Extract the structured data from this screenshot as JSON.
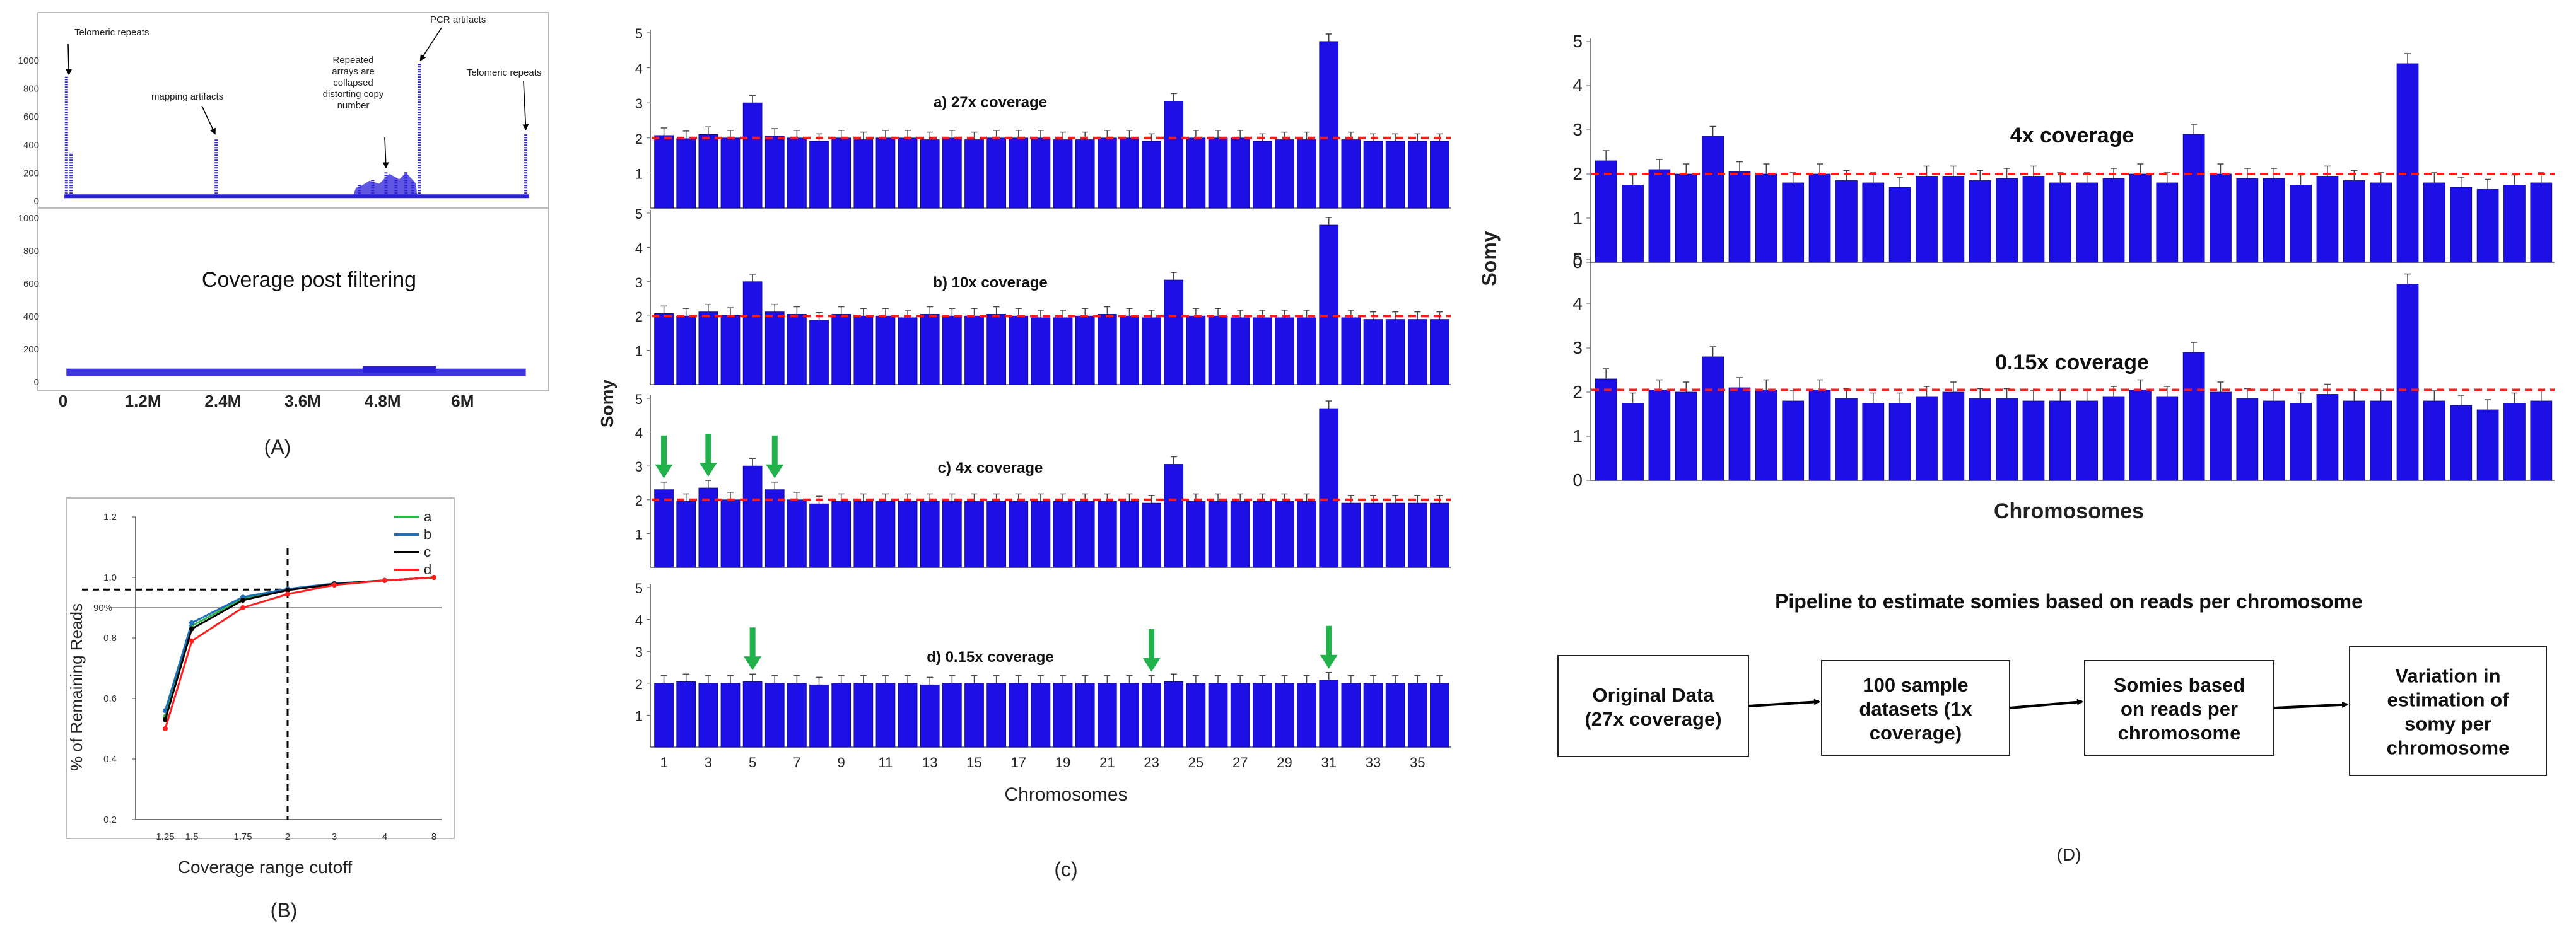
{
  "colors": {
    "bar": "#1c10e6",
    "bar_edge": "#0a0680",
    "ref_line": "#ff1a1a",
    "arrow": "#22b24c",
    "coverage_trace": "#2a1fd8",
    "line_a": "#2db34a",
    "line_b": "#1f6fb8",
    "line_c": "#000000",
    "line_d": "#ff2020"
  },
  "panel_labels": {
    "a": "(A)",
    "b": "(B)",
    "c": "(c)",
    "d": "(D)"
  },
  "chart_data": [
    {
      "id": "A_top",
      "type": "line",
      "title": "",
      "ylim": [
        0,
        1000
      ],
      "yticks": [
        "0",
        "200",
        "400",
        "600",
        "800",
        "1000"
      ],
      "xticks": [
        "0",
        "1.2M",
        "2.4M",
        "3.6M",
        "4.8M",
        "6M"
      ],
      "x_unit_per_tick": 1.2,
      "x_max": 7.2,
      "baseline": 30,
      "peaks": [
        {
          "x": 0.05,
          "y": 880
        },
        {
          "x": 0.12,
          "y": 340
        },
        {
          "x": 2.3,
          "y": 440
        },
        {
          "x": 4.45,
          "y": 120
        },
        {
          "x": 4.65,
          "y": 150
        },
        {
          "x": 4.85,
          "y": 200
        },
        {
          "x": 5.0,
          "y": 160
        },
        {
          "x": 5.15,
          "y": 210
        },
        {
          "x": 5.25,
          "y": 130
        },
        {
          "x": 5.35,
          "y": 980
        },
        {
          "x": 6.95,
          "y": 470
        }
      ],
      "annotations": [
        {
          "text": "Telomeric repeats",
          "lines": [
            "Telomeric repeats"
          ]
        },
        {
          "text": "mapping artifacts",
          "lines": [
            "mapping artifacts"
          ]
        },
        {
          "text": "Repeated arrays are collapsed distorting copy number",
          "lines": [
            "Repeated",
            "arrays are",
            "collapsed",
            "distorting copy",
            "number"
          ]
        },
        {
          "text": "PCR artifacts",
          "lines": [
            "PCR artifacts"
          ]
        },
        {
          "text": "Telomeric repeats",
          "lines": [
            "Telomeric repeats"
          ]
        }
      ]
    },
    {
      "id": "A_bottom",
      "type": "line",
      "title": "Coverage post filtering",
      "ylim": [
        0,
        1000
      ],
      "yticks": [
        "0",
        "200",
        "400",
        "600",
        "800",
        "1000"
      ],
      "xticks": [
        "0",
        "1.2M",
        "2.4M",
        "3.6M",
        "4.8M",
        "6M"
      ],
      "x_max": 7.2,
      "level": 55,
      "bump": {
        "from": 4.5,
        "to": 5.6,
        "level": 70
      }
    },
    {
      "id": "B",
      "type": "line",
      "xlabel": "Coverage range cutoff",
      "ylabel": "% of Remaining Reads",
      "categories": [
        "1.25",
        "1.5",
        "1.75",
        "2",
        "3",
        "4",
        "8"
      ],
      "ylim": [
        0.2,
        1.2
      ],
      "yticks": [
        "0.2",
        "0.4",
        "0.6",
        "0.8",
        "1.0",
        "1.2"
      ],
      "ref_label": "90%",
      "ref_y": 0.9,
      "dashed_x": "2",
      "dashed_y": 0.96,
      "series": [
        {
          "name": "a",
          "values": [
            0.54,
            0.84,
            0.93,
            0.96,
            0.98,
            0.99,
            1.0
          ]
        },
        {
          "name": "b",
          "values": [
            0.56,
            0.85,
            0.935,
            0.962,
            0.98,
            0.99,
            1.0
          ]
        },
        {
          "name": "c",
          "values": [
            0.53,
            0.83,
            0.925,
            0.958,
            0.978,
            0.99,
            1.0
          ]
        },
        {
          "name": "d",
          "values": [
            0.5,
            0.79,
            0.9,
            0.945,
            0.975,
            0.99,
            1.0
          ]
        }
      ]
    },
    {
      "id": "C_a",
      "type": "bar",
      "title": "a) 27x coverage",
      "ylim": [
        0,
        5
      ],
      "yticks": [
        "1",
        "2",
        "3",
        "4",
        "5"
      ],
      "ref_line": 2,
      "values": [
        2.07,
        1.98,
        2.1,
        2.0,
        3.0,
        2.05,
        2.0,
        1.9,
        2.0,
        1.95,
        2.0,
        2.0,
        1.95,
        2.0,
        1.95,
        2.0,
        2.0,
        2.0,
        1.95,
        1.95,
        2.0,
        2.0,
        1.9,
        3.05,
        2.0,
        2.0,
        2.0,
        1.9,
        1.95,
        1.95,
        4.75,
        1.95,
        1.9,
        1.9,
        1.9,
        1.9
      ],
      "arrows": []
    },
    {
      "id": "C_b",
      "type": "bar",
      "title": "b) 10x coverage",
      "ylim": [
        0,
        5
      ],
      "yticks": [
        "1",
        "2",
        "3",
        "4",
        "5"
      ],
      "ref_line": 2,
      "values": [
        2.07,
        2.0,
        2.12,
        2.02,
        3.0,
        2.12,
        2.05,
        1.88,
        2.05,
        2.0,
        2.0,
        1.95,
        2.05,
        2.0,
        2.0,
        2.05,
        2.0,
        1.95,
        1.95,
        2.0,
        2.05,
        2.0,
        1.95,
        3.05,
        2.0,
        2.0,
        1.95,
        1.95,
        1.95,
        1.95,
        4.65,
        1.95,
        1.9,
        1.9,
        1.9,
        1.9
      ],
      "arrows": []
    },
    {
      "id": "C_c",
      "type": "bar",
      "title": "c) 4x coverage",
      "ylim": [
        0,
        5
      ],
      "yticks": [
        "1",
        "2",
        "3",
        "4",
        "5"
      ],
      "ref_line": 2,
      "values": [
        2.3,
        1.95,
        2.35,
        2.0,
        3.0,
        2.3,
        2.0,
        1.88,
        1.95,
        1.95,
        1.95,
        1.95,
        1.95,
        1.95,
        1.95,
        1.95,
        1.95,
        1.95,
        1.95,
        1.95,
        1.95,
        1.95,
        1.9,
        3.05,
        1.95,
        1.95,
        1.95,
        1.95,
        1.95,
        1.95,
        4.7,
        1.9,
        1.9,
        1.9,
        1.9,
        1.9
      ],
      "arrows": [
        1,
        3,
        6
      ]
    },
    {
      "id": "C_d",
      "type": "bar",
      "title": "d) 0.15x coverage",
      "xlabel": "Chromosomes",
      "ylabel": "Somy",
      "ylim": [
        0,
        5
      ],
      "yticks": [
        "1",
        "2",
        "3",
        "4",
        "5"
      ],
      "xticks": [
        "1",
        "3",
        "5",
        "7",
        "9",
        "11",
        "13",
        "15",
        "17",
        "19",
        "21",
        "23",
        "25",
        "27",
        "29",
        "31",
        "33",
        "35"
      ],
      "values": [
        2.0,
        2.05,
        2.0,
        2.0,
        2.05,
        2.0,
        2.0,
        1.95,
        2.0,
        2.0,
        2.0,
        2.0,
        1.95,
        2.0,
        2.0,
        2.0,
        2.0,
        2.0,
        2.0,
        2.0,
        2.0,
        2.0,
        2.0,
        2.05,
        2.0,
        2.0,
        2.0,
        2.0,
        2.0,
        2.0,
        2.1,
        2.0,
        2.0,
        2.0,
        2.0,
        2.0
      ],
      "arrows": [
        5,
        23,
        31
      ]
    },
    {
      "id": "D_top",
      "type": "bar",
      "title": "4x coverage",
      "ylim": [
        0,
        5
      ],
      "yticks": [
        "0",
        "1",
        "2",
        "3",
        "4",
        "5"
      ],
      "ref_line": 2,
      "values": [
        2.3,
        1.75,
        2.1,
        2.0,
        2.85,
        2.05,
        2.0,
        1.8,
        2.0,
        1.85,
        1.8,
        1.7,
        1.95,
        1.95,
        1.85,
        1.9,
        1.95,
        1.8,
        1.8,
        1.9,
        2.0,
        1.8,
        2.9,
        2.0,
        1.9,
        1.9,
        1.75,
        1.95,
        1.85,
        1.8,
        4.5,
        1.8,
        1.7,
        1.65,
        1.75,
        1.8
      ]
    },
    {
      "id": "D_bottom",
      "type": "bar",
      "title": "0.15x coverage",
      "xlabel": "Chromosomes",
      "ylabel": "Somy",
      "ylim": [
        0,
        5
      ],
      "yticks": [
        "0",
        "1",
        "2",
        "3",
        "4",
        "5"
      ],
      "ref_line": 2.05,
      "values": [
        2.3,
        1.75,
        2.05,
        2.0,
        2.8,
        2.1,
        2.05,
        1.8,
        2.05,
        1.85,
        1.75,
        1.75,
        1.9,
        2.0,
        1.85,
        1.85,
        1.8,
        1.8,
        1.8,
        1.9,
        2.05,
        1.9,
        2.9,
        2.0,
        1.85,
        1.8,
        1.75,
        1.95,
        1.8,
        1.8,
        4.45,
        1.8,
        1.7,
        1.6,
        1.75,
        1.8
      ]
    }
  ],
  "pipeline": {
    "title": "Pipeline to estimate somies based on reads per chromosome",
    "boxes": [
      {
        "lines": [
          "Original Data",
          "(27x coverage)"
        ]
      },
      {
        "lines": [
          "100 sample",
          "datasets (1x",
          "coverage)"
        ]
      },
      {
        "lines": [
          "Somies based",
          "on reads per",
          "chromosome"
        ]
      },
      {
        "lines": [
          "Variation in",
          "estimation of",
          "somy per",
          "chromosome"
        ]
      }
    ]
  }
}
